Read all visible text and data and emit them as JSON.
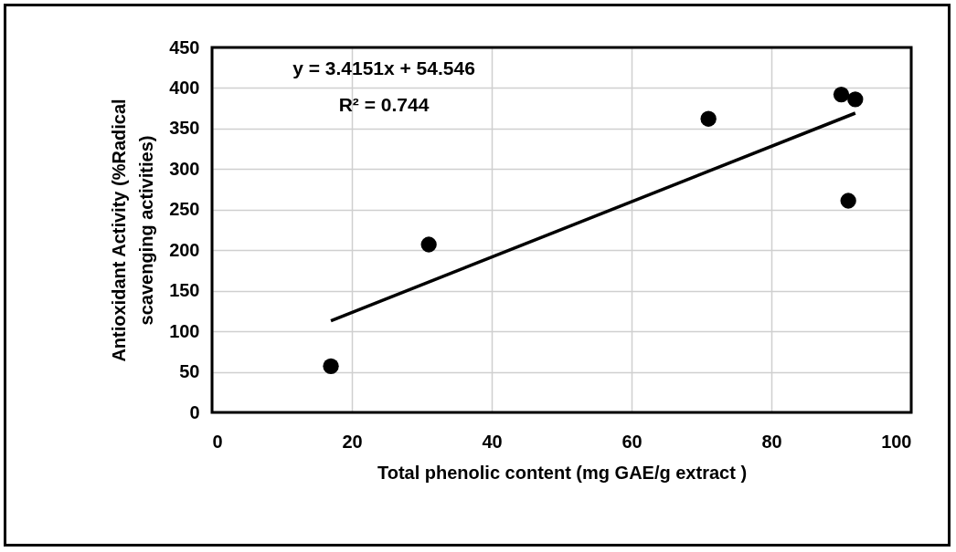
{
  "chart_data": {
    "type": "scatter",
    "xlabel": "Total phenolic content  (mg GAE/g extract )",
    "ylabel": "Antioxidant Activity (%Radical scavenging activities)",
    "x": [
      17,
      31,
      71,
      90,
      92,
      91
    ],
    "series": [
      {
        "color": "#000000",
        "values": [
          57,
          207,
          362,
          392,
          386,
          261
        ]
      },
      {
        "type": "line",
        "color": "#000000",
        "x": [
          17,
          92
        ],
        "values": [
          113,
          369
        ],
        "marker": "none"
      }
    ],
    "annotations": [
      "y = 3.4151x + 54.546",
      "R² = 0.744"
    ],
    "xlim": [
      0,
      100
    ],
    "xticks": [
      0,
      20,
      40,
      60,
      80,
      100
    ],
    "ylim": [
      0,
      450
    ],
    "yticks": [
      0,
      50,
      100,
      150,
      200,
      250,
      300,
      350,
      400,
      450
    ],
    "grid": true,
    "marker": "circle",
    "line_style": "solid"
  }
}
